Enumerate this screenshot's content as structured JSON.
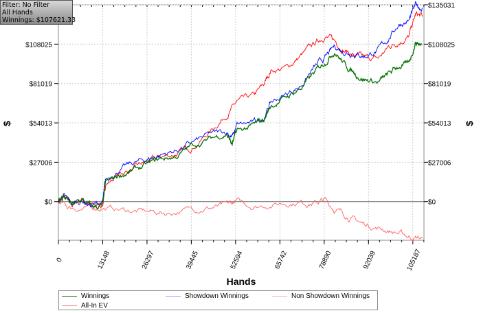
{
  "info": {
    "filter": "Filter: No Filter",
    "hands": "All Hands",
    "winnings": "Winnings: $107621.33"
  },
  "chart_data": {
    "type": "line",
    "xlabel": "Hands",
    "ylabel": "$",
    "xlim": [
      0,
      108500
    ],
    "ylim": [
      -26500,
      135031
    ],
    "x_ticks": [
      "0",
      "13148",
      "26297",
      "39445",
      "52594",
      "65742",
      "78890",
      "92039",
      "105187"
    ],
    "x_tick_values": [
      0,
      13148,
      26297,
      39445,
      52594,
      65742,
      78890,
      92039,
      105187
    ],
    "y_ticks": [
      "$0",
      "$27006",
      "$54013",
      "$81019",
      "$108025",
      "$135031"
    ],
    "y_tick_values": [
      0,
      27006,
      54013,
      81019,
      108025,
      135031
    ],
    "grid": true,
    "legend_position": "bottom",
    "series": [
      {
        "name": "Winnings",
        "color": "#007000",
        "points": [
          [
            0,
            0
          ],
          [
            1500,
            3500
          ],
          [
            4000,
            -3000
          ],
          [
            7000,
            1000
          ],
          [
            10000,
            -4000
          ],
          [
            13148,
            -3000
          ],
          [
            14000,
            12000
          ],
          [
            18000,
            18000
          ],
          [
            22000,
            21000
          ],
          [
            26297,
            25000
          ],
          [
            30000,
            29000
          ],
          [
            35000,
            31000
          ],
          [
            39445,
            38000
          ],
          [
            45000,
            43000
          ],
          [
            50000,
            47000
          ],
          [
            51500,
            39000
          ],
          [
            53000,
            48000
          ],
          [
            58000,
            52000
          ],
          [
            61000,
            56000
          ],
          [
            63000,
            66000
          ],
          [
            68000,
            72000
          ],
          [
            72000,
            78000
          ],
          [
            76000,
            88000
          ],
          [
            79000,
            96000
          ],
          [
            82000,
            104000
          ],
          [
            85000,
            94000
          ],
          [
            88000,
            88000
          ],
          [
            91000,
            84000
          ],
          [
            95000,
            82000
          ],
          [
            98000,
            87000
          ],
          [
            101000,
            93000
          ],
          [
            104000,
            94000
          ],
          [
            106000,
            110000
          ],
          [
            108000,
            107600
          ]
        ]
      },
      {
        "name": "Showdown Winnings",
        "color": "#0000ff",
        "points": [
          [
            0,
            0
          ],
          [
            1500,
            3500
          ],
          [
            4000,
            -2000
          ],
          [
            7000,
            1000
          ],
          [
            10000,
            -3000
          ],
          [
            13148,
            0
          ],
          [
            14000,
            14000
          ],
          [
            18000,
            22000
          ],
          [
            22000,
            26000
          ],
          [
            26297,
            29000
          ],
          [
            30000,
            32000
          ],
          [
            35000,
            35000
          ],
          [
            39445,
            40000
          ],
          [
            45000,
            46000
          ],
          [
            50000,
            48000
          ],
          [
            51500,
            44000
          ],
          [
            53000,
            52000
          ],
          [
            58000,
            54000
          ],
          [
            61000,
            58000
          ],
          [
            63000,
            68000
          ],
          [
            68000,
            74000
          ],
          [
            72000,
            80000
          ],
          [
            76000,
            92000
          ],
          [
            79000,
            98000
          ],
          [
            82000,
            106000
          ],
          [
            85000,
            103000
          ],
          [
            88000,
            102000
          ],
          [
            91000,
            100000
          ],
          [
            95000,
            104000
          ],
          [
            98000,
            112000
          ],
          [
            101000,
            122000
          ],
          [
            104000,
            124000
          ],
          [
            106000,
            134000
          ],
          [
            108000,
            133000
          ]
        ]
      },
      {
        "name": "Non Showdown Winnings",
        "color": "#ff6060",
        "points": [
          [
            0,
            0
          ],
          [
            3000,
            -4000
          ],
          [
            8000,
            -5000
          ],
          [
            13148,
            -4000
          ],
          [
            20000,
            -6000
          ],
          [
            26297,
            -7000
          ],
          [
            32000,
            -8000
          ],
          [
            39445,
            -5000
          ],
          [
            45000,
            -4000
          ],
          [
            50000,
            -3000
          ],
          [
            52594,
            0
          ],
          [
            58000,
            -3000
          ],
          [
            65742,
            -1000
          ],
          [
            72000,
            0
          ],
          [
            76000,
            -1000
          ],
          [
            79000,
            1000
          ],
          [
            82000,
            -5000
          ],
          [
            86000,
            -10000
          ],
          [
            90000,
            -15000
          ],
          [
            95000,
            -18000
          ],
          [
            100000,
            -21000
          ],
          [
            104000,
            -24000
          ],
          [
            108000,
            -25000
          ]
        ]
      },
      {
        "name": "All-In EV",
        "color": "#ff0000",
        "points": [
          [
            0,
            0
          ],
          [
            1500,
            3000
          ],
          [
            4000,
            -3000
          ],
          [
            7000,
            2000
          ],
          [
            10000,
            -3000
          ],
          [
            13148,
            -2000
          ],
          [
            14000,
            12000
          ],
          [
            18000,
            19000
          ],
          [
            22000,
            22000
          ],
          [
            26297,
            27000
          ],
          [
            30000,
            30000
          ],
          [
            35000,
            33000
          ],
          [
            39445,
            37000
          ],
          [
            45000,
            48000
          ],
          [
            50000,
            60000
          ],
          [
            53000,
            68000
          ],
          [
            58000,
            72000
          ],
          [
            61000,
            80000
          ],
          [
            63000,
            90000
          ],
          [
            68000,
            92000
          ],
          [
            72000,
            100000
          ],
          [
            76000,
            108000
          ],
          [
            79000,
            114000
          ],
          [
            82000,
            110000
          ],
          [
            85000,
            104000
          ],
          [
            88000,
            100000
          ],
          [
            91000,
            98000
          ],
          [
            95000,
            98000
          ],
          [
            98000,
            106000
          ],
          [
            101000,
            110000
          ],
          [
            104000,
            113000
          ],
          [
            106000,
            128000
          ],
          [
            108000,
            127000
          ]
        ]
      }
    ]
  },
  "legend": [
    "Winnings",
    "Showdown Winnings",
    "Non Showdown Winnings",
    "All-In EV"
  ]
}
